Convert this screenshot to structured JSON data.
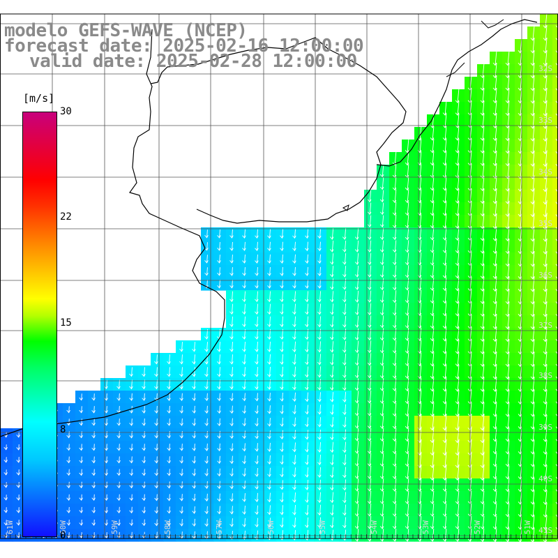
{
  "title": {
    "model": "modelo GEFS-WAVE (NCEP)",
    "forecast": "forecast date: 2025-02-16 12:00:00",
    "valid": "valid date: 2025-02-28 12:00:00"
  },
  "colorbar": {
    "unit": "[m/s]",
    "ticks": [
      "30",
      "22",
      "15",
      "8",
      "0"
    ],
    "tick_values": [
      30,
      22,
      15,
      8,
      0
    ],
    "range": [
      0,
      30
    ],
    "colors": [
      "#1010ff",
      "#00ffff",
      "#00ff00",
      "#ffff00",
      "#ff8000",
      "#ff0000",
      "#c8007c"
    ]
  },
  "map": {
    "ocean_grid_color": "#000000",
    "land_color": "#ffffff",
    "coast_color": "#000000",
    "arrow_color": "#ffffff",
    "wind_direction": "from north-northeast, pointing south-southwest",
    "lat_labels": [
      "32S",
      "33S",
      "34S",
      "35S",
      "36S",
      "37S",
      "38S",
      "39S",
      "40S",
      "41S"
    ],
    "lon_labels": [
      "61W",
      "60W",
      "59W",
      "58W",
      "57W",
      "56W",
      "55W",
      "54W",
      "53W",
      "52W",
      "51W"
    ]
  }
}
